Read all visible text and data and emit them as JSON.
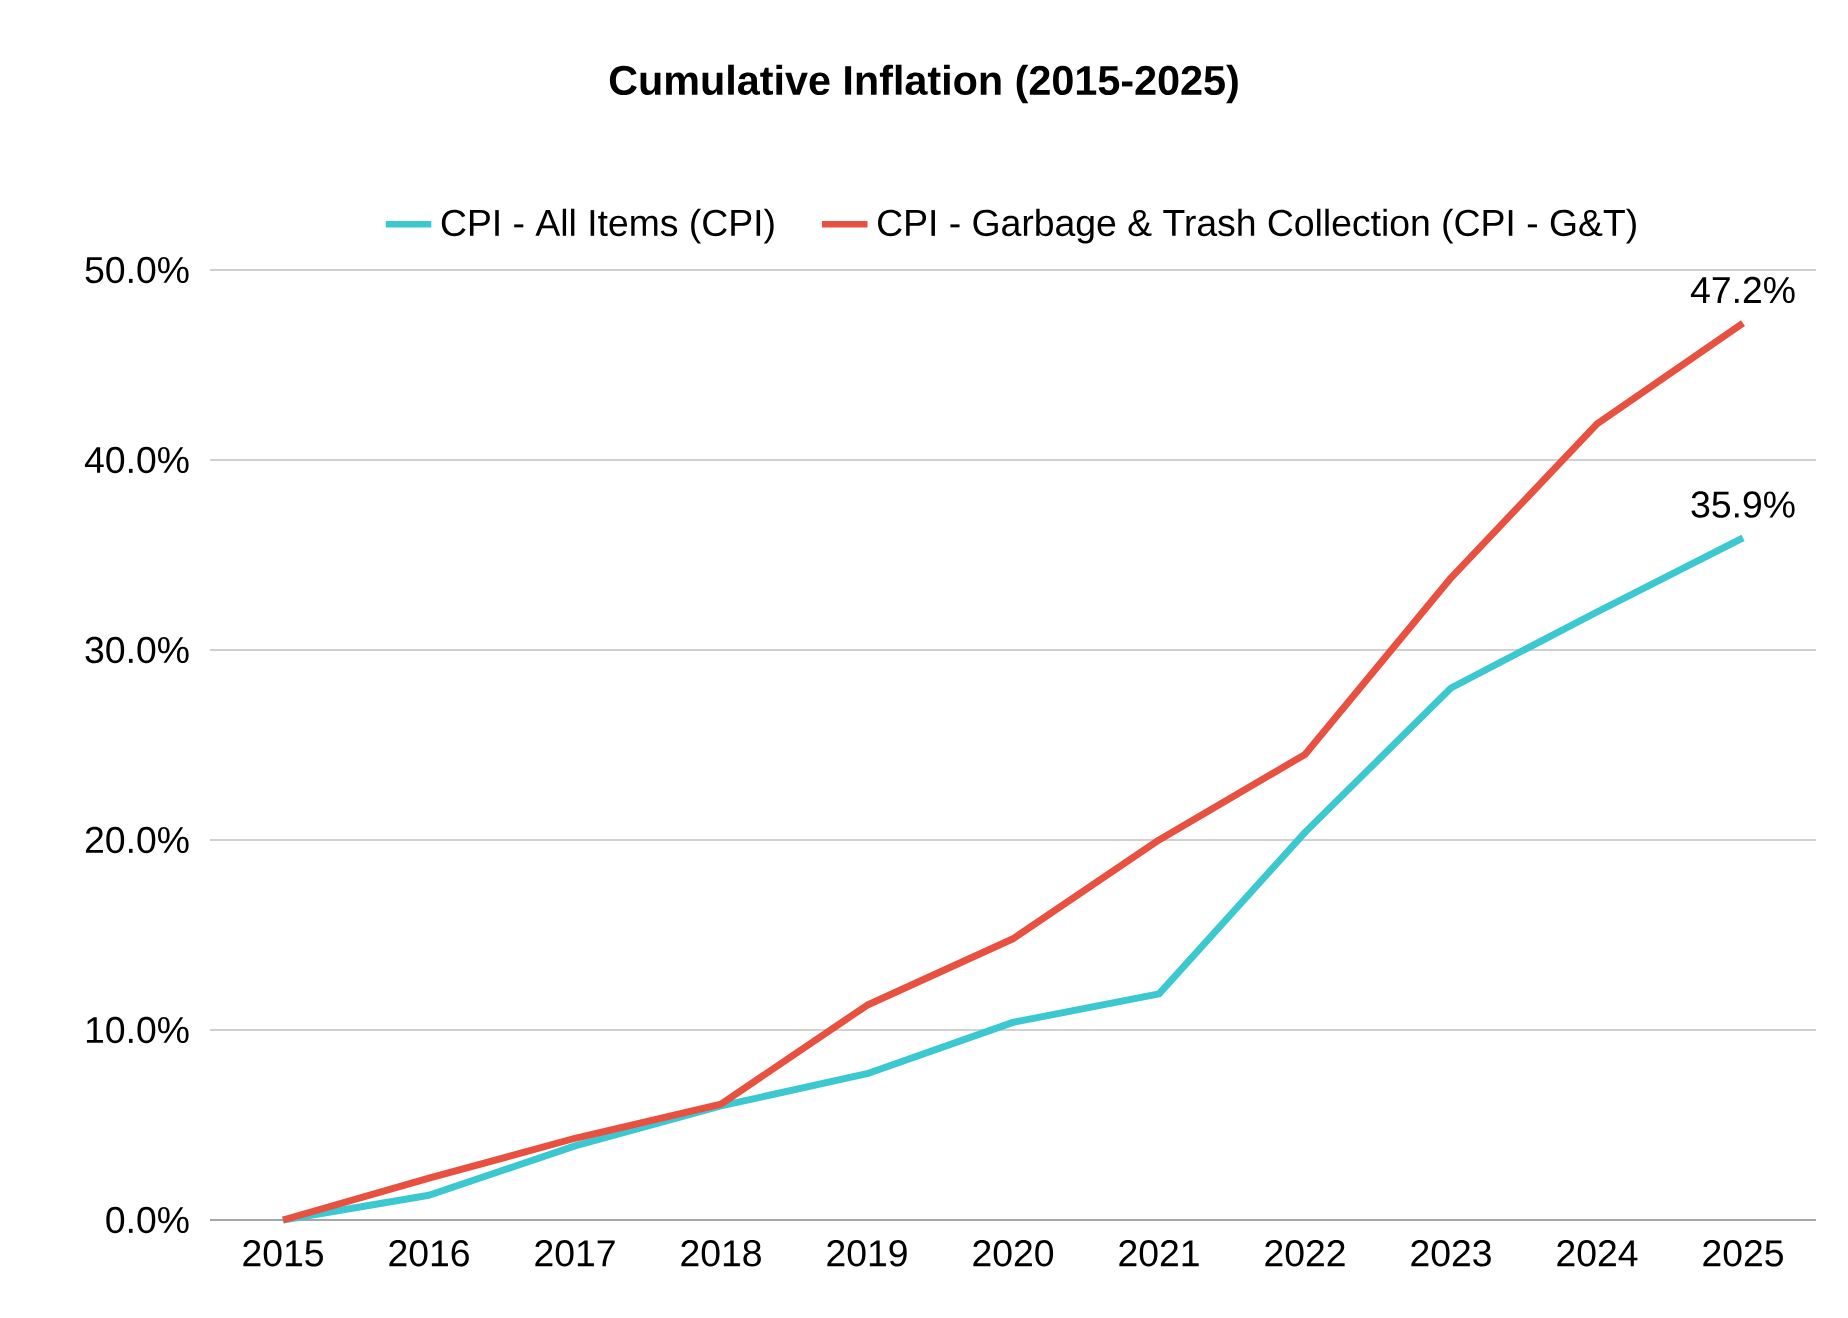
{
  "chart_data": {
    "type": "line",
    "title": "Cumulative Inflation (2015-2025)",
    "categories": [
      "2015",
      "2016",
      "2017",
      "2018",
      "2019",
      "2020",
      "2021",
      "2022",
      "2023",
      "2024",
      "2025"
    ],
    "series": [
      {
        "name": "CPI - All Items (CPI)",
        "color": "#3cc8d0",
        "values": [
          0,
          1.3,
          3.9,
          6.0,
          7.7,
          10.4,
          11.9,
          20.4,
          28.0,
          32.0,
          35.9
        ],
        "value_labels": [
          null,
          null,
          null,
          null,
          null,
          null,
          null,
          null,
          null,
          null,
          "35.9%"
        ]
      },
      {
        "name": "CPI - Garbage & Trash Collection (CPI - G&T)",
        "color": "#e8503f",
        "values": [
          0,
          2.2,
          4.3,
          6.1,
          11.3,
          14.8,
          20.0,
          24.5,
          33.8,
          41.9,
          47.2
        ],
        "value_labels": [
          null,
          null,
          null,
          null,
          null,
          null,
          null,
          null,
          null,
          null,
          "47.2%"
        ]
      }
    ],
    "ylim": [
      0,
      50
    ],
    "yticks": [
      {
        "value": 0,
        "label": "0.0%"
      },
      {
        "value": 10,
        "label": "10.0%"
      },
      {
        "value": 20,
        "label": "20.0%"
      },
      {
        "value": 30,
        "label": "30.0%"
      },
      {
        "value": 40,
        "label": "40.0%"
      },
      {
        "value": 50,
        "label": "50.0%"
      }
    ],
    "grid": "y",
    "legend": "top",
    "line_style": "solid",
    "marker": "none"
  }
}
